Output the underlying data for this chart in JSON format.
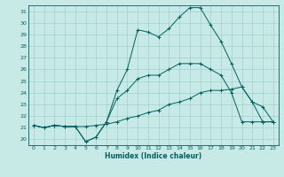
{
  "xlabel": "Humidex (Indice chaleur)",
  "bg_color": "#c8eae6",
  "grid_color": "#a0d0cc",
  "line_color": "#006060",
  "spine_color": "#006060",
  "xlim": [
    -0.5,
    23.5
  ],
  "ylim": [
    19.5,
    31.5
  ],
  "yticks": [
    20,
    21,
    22,
    23,
    24,
    25,
    26,
    27,
    28,
    29,
    30,
    31
  ],
  "xticks": [
    0,
    1,
    2,
    3,
    4,
    5,
    6,
    7,
    8,
    9,
    10,
    11,
    12,
    13,
    14,
    15,
    16,
    17,
    18,
    19,
    20,
    21,
    22,
    23
  ],
  "line1_x": [
    0,
    1,
    2,
    3,
    4,
    5,
    6,
    7,
    8,
    9,
    10,
    11,
    12,
    13,
    14,
    15,
    16,
    17,
    18,
    19,
    20,
    21,
    22,
    23
  ],
  "line1_y": [
    21.2,
    21.0,
    21.2,
    21.1,
    21.1,
    19.8,
    20.2,
    21.5,
    24.2,
    26.0,
    29.4,
    29.2,
    28.8,
    29.5,
    30.5,
    31.3,
    31.3,
    29.8,
    28.4,
    26.5,
    24.5,
    23.2,
    21.5,
    21.5
  ],
  "line2_x": [
    0,
    1,
    2,
    3,
    4,
    5,
    6,
    7,
    8,
    9,
    10,
    11,
    12,
    13,
    14,
    15,
    16,
    17,
    18,
    19,
    20,
    21,
    22,
    23
  ],
  "line2_y": [
    21.2,
    21.0,
    21.2,
    21.1,
    21.1,
    19.8,
    20.2,
    21.5,
    23.5,
    24.2,
    25.2,
    25.5,
    25.5,
    26.0,
    26.5,
    26.5,
    26.5,
    26.0,
    25.5,
    24.0,
    21.5,
    21.5,
    21.5,
    21.5
  ],
  "line3_x": [
    0,
    1,
    2,
    3,
    4,
    5,
    6,
    7,
    8,
    9,
    10,
    11,
    12,
    13,
    14,
    15,
    16,
    17,
    18,
    19,
    20,
    21,
    22,
    23
  ],
  "line3_y": [
    21.2,
    21.0,
    21.2,
    21.1,
    21.1,
    21.1,
    21.2,
    21.3,
    21.5,
    21.8,
    22.0,
    22.3,
    22.5,
    23.0,
    23.2,
    23.5,
    24.0,
    24.2,
    24.2,
    24.3,
    24.5,
    23.2,
    22.8,
    21.5
  ]
}
